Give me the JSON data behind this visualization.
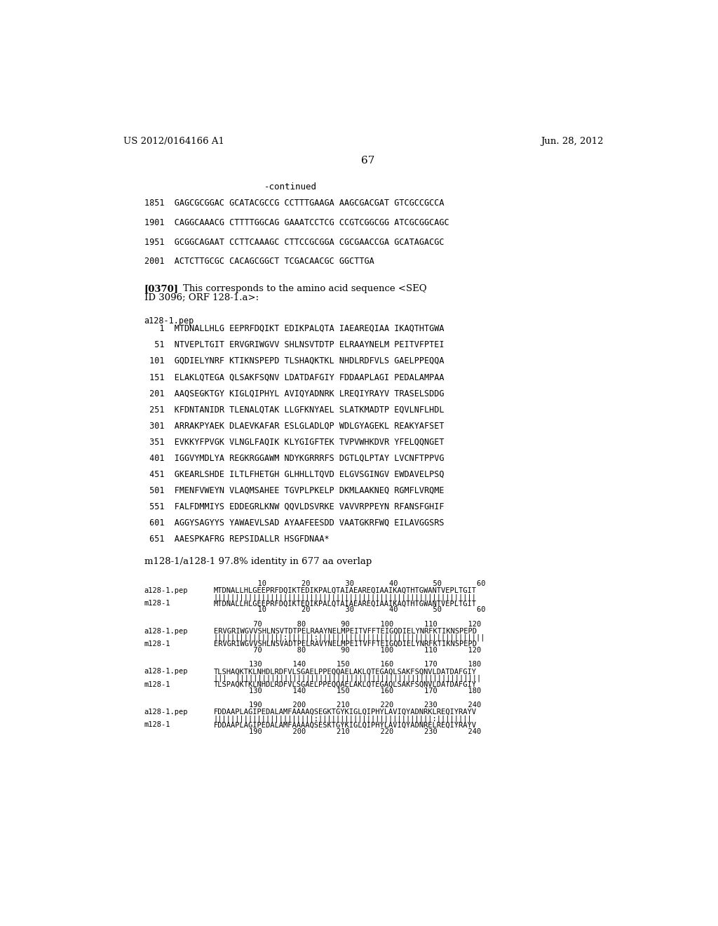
{
  "background_color": "#ffffff",
  "header_left": "US 2012/0164166 A1",
  "header_right": "Jun. 28, 2012",
  "page_number": "67",
  "continued_label": "-continued",
  "dna_sequences": [
    "1851  GAGCGCGGAC GCATACGCCG CCTTTGAAGA AAGCGACGAT GTCGCCGCCA",
    "1901  CAGGCAAACG CTTTTGGCAG GAAATCCTCG CCGTCGGCGG ATCGCGGCAGC",
    "1951  GCGGCAGAAT CCTTCAAAGC CTTCCGCGGA CGCGAACCGA GCATAGACGC",
    "2001  ACTCTTGCGC CACAGCGGCT TCGACAACGC GGCTTGA"
  ],
  "paragraph_label": "[0370]",
  "paragraph_text1": "This corresponds to the amino acid sequence <SEQ",
  "paragraph_text2": "ID 3096; ORF 128-1.a>:",
  "protein_label": "a128-1.pep",
  "protein_sequences": [
    "   1  MTDNALLHLG EEPRFDQIKT EDIKPALQTA IAEAREQIAA IKAQTHTGWA",
    "  51  NTVEPLTGIT ERVGRIWGVV SHLNSVTDTP ELRAAYNELM PEITVFPTEI",
    " 101  GQDIELYNRF KTIKNSPEPD TLSHAQKTKL NHDLRDFVLS GAELPPEQQA",
    " 151  ELAKLQTEGA QLSAKFSQNV LDATDAFGIY FDDAAPLAGI PEDALAMPAA",
    " 201  AAQSEGKTGY KIGLQIPHYL AVIQYADNRK LREQIYRAYV TRASELSDDG",
    " 251  KFDNTANIDR TLENALQTAK LLGFKNYAEL SLATKMADTP EQVLNFLHDL",
    " 301  ARRAKPYAEK DLAEVKAFAR ESLGLADLQP WDLGYAGEKL REAKYAFSET",
    " 351  EVKKYFPVGK VLNGLFAQIK KLYGIGFTEK TVPVWHKDVR YFELQQNGET",
    " 401  IGGVYMDLYA REGKRGGAWM NDYKGRRRFS DGTLQLPTAY LVCNFTPPVG",
    " 451  GKEARLSHDE ILTLFHETGH GLHHLLTQVD ELGVSGINGV EWDAVELPSQ",
    " 501  FMENFVWEYN VLAQMSAHEE TGVPLPKELP DKMLAAKNEQ RGMFLVRQME",
    " 551  FALFDMMIYS EDDEGRLKNW QQVLDSVRKE VAVVRPPEYN RFANSFGHIF",
    " 601  AGGYSAGYYS YAWAEVLSAD AYAAFEESDD VAATGKRFWQ EILAVGGSRS",
    " 651  AAESPKAFRG REPSIDALLR HSGFDNAA*"
  ],
  "identity_line": "m128-1/a128-1 97.8% identity in 677 aa overlap",
  "alignment_blocks": [
    {
      "top_numbers": "          10        20        30        40        50        60",
      "seq1_label": "a128-1.pep",
      "seq1": "MTDNALLHLGEEPRFDQIKTEDIKPALQTAIAEAREQIAAIKAQTHTGWANTVEPLTGIT",
      "bars": "||||||||||||||||||||||||||||||||||||||||||||||||||||||||||||",
      "seq2_label": "m128-1",
      "seq2": "MTDNALLHLGEEPRFDQIKTEDIKPALQTAIAEAREQIAAIKAQTHTGWANTVEPLTGIT",
      "bot_numbers": "          10        20        30        40        50        60"
    },
    {
      "top_numbers": "         70        80        90       100       110       120",
      "seq1_label": "a128-1.pep",
      "seq1": "ERVGRIWGVVSHLNSVTDTPELRAAYNELMPEITVFFTEIGQDIELYNRFKTIKNSPEPD",
      "bars": "||||||||||||||||:||||||:||||||||||||||||||||||||||||||||||||||",
      "seq2_label": "m128-1",
      "seq2": "ERVGRIWGVVSHLNSVADTPELRAVYNELMPEITVFFTEIGQDIELYNRFKTIKNSPEPD",
      "bot_numbers": "         70        80        90       100       110       120"
    },
    {
      "top_numbers": "        130       140       150       160       170       180",
      "seq1_label": "a128-1.pep",
      "seq1": "TLSHAQKTKLNHDLRDFVLSGAELPPEQQAELAKLQTEGAQLSAKFSQNVLDATDAFGIY",
      "bars": "|||  ||||||||||||||||||||||||||||||||||||||||||||||||||||||||",
      "seq2_label": "m128-1",
      "seq2": "TLSPAQKTKLNHDLRDFVLSGAELPPEQQAELAKLQTEGAQLSAKFSQNVLDATDAFGIY",
      "bot_numbers": "        130       140       150       160       170       180"
    },
    {
      "top_numbers": "        190       200       210       220       230       240",
      "seq1_label": "a128-1.pep",
      "seq1": "FDDAAPLAGIPEDALAMFAAAAQSEGKTGYKIGLQIPHYLAVIQYADNRKLREQIYRAYV",
      "bars": "|||||||||||||||||||||||:||||||||||||||||||||||||||:||||||||",
      "seq2_label": "m128-1",
      "seq2": "FDDAAPLAGIPEDALAMFAAAAQSESKTGYKIGLQIPHYLAVIQYADNRELREQIYRAYV",
      "bot_numbers": "        190       200       210       220       230       240"
    }
  ]
}
